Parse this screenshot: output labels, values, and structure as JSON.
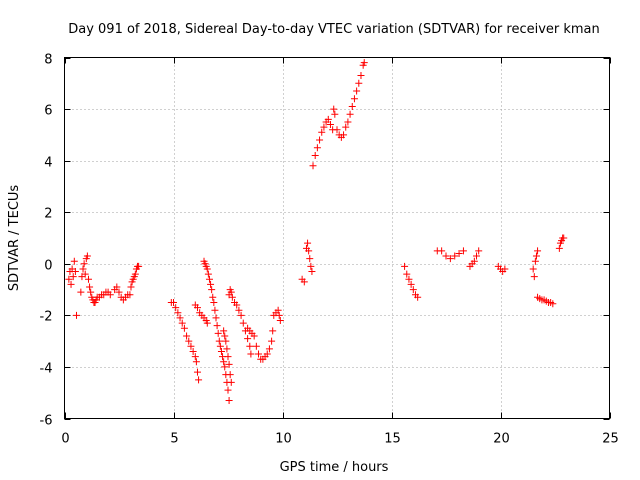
{
  "chart_data": {
    "type": "scatter",
    "title": "Day 091 of 2018, Sidereal Day-to-day VTEC variation (SDTVAR) for receiver kman",
    "xlabel": "GPS time / hours",
    "ylabel": "SDTVAR / TECUs",
    "xlim": [
      0,
      25
    ],
    "ylim": [
      -6,
      8
    ],
    "xticks": [
      0,
      5,
      10,
      15,
      20,
      25
    ],
    "yticks": [
      -6,
      -4,
      -2,
      0,
      2,
      4,
      6,
      8
    ],
    "xtick_labels": [
      "0",
      "5",
      "10",
      "15",
      "20",
      "25"
    ],
    "ytick_labels": [
      "-6",
      "-4",
      "-2",
      "0",
      "2",
      "4",
      "6",
      "8"
    ],
    "grid": true,
    "marker": "+",
    "marker_color": "#ff0000",
    "series": [
      {
        "name": "SDTVAR",
        "points": [
          [
            0.2,
            -0.6
          ],
          [
            0.25,
            -0.3
          ],
          [
            0.3,
            -0.8
          ],
          [
            0.35,
            -0.2
          ],
          [
            0.4,
            -0.5
          ],
          [
            0.45,
            0.1
          ],
          [
            0.5,
            -0.3
          ],
          [
            0.55,
            -2.0
          ],
          [
            0.75,
            -1.1
          ],
          [
            0.8,
            -0.5
          ],
          [
            0.85,
            -0.2
          ],
          [
            0.9,
            0.0
          ],
          [
            0.95,
            -0.4
          ],
          [
            1.0,
            0.2
          ],
          [
            1.05,
            0.3
          ],
          [
            1.1,
            -0.6
          ],
          [
            1.15,
            -0.9
          ],
          [
            1.2,
            -1.1
          ],
          [
            1.25,
            -1.3
          ],
          [
            1.3,
            -1.4
          ],
          [
            1.35,
            -1.5
          ],
          [
            1.4,
            -1.5
          ],
          [
            1.45,
            -1.4
          ],
          [
            1.5,
            -1.3
          ],
          [
            1.6,
            -1.3
          ],
          [
            1.7,
            -1.2
          ],
          [
            1.8,
            -1.2
          ],
          [
            1.9,
            -1.1
          ],
          [
            2.0,
            -1.1
          ],
          [
            2.1,
            -1.2
          ],
          [
            2.3,
            -1.0
          ],
          [
            2.4,
            -0.9
          ],
          [
            2.5,
            -1.1
          ],
          [
            2.6,
            -1.3
          ],
          [
            2.7,
            -1.4
          ],
          [
            2.8,
            -1.3
          ],
          [
            2.9,
            -1.2
          ],
          [
            3.0,
            -1.2
          ],
          [
            3.05,
            -0.9
          ],
          [
            3.1,
            -0.7
          ],
          [
            3.15,
            -0.6
          ],
          [
            3.2,
            -0.5
          ],
          [
            3.25,
            -0.4
          ],
          [
            3.3,
            -0.2
          ],
          [
            3.35,
            -0.1
          ],
          [
            3.4,
            -0.1
          ],
          [
            4.9,
            -1.5
          ],
          [
            5.0,
            -1.5
          ],
          [
            5.1,
            -1.7
          ],
          [
            5.2,
            -1.9
          ],
          [
            5.3,
            -2.1
          ],
          [
            5.4,
            -2.3
          ],
          [
            5.5,
            -2.5
          ],
          [
            5.6,
            -2.8
          ],
          [
            5.7,
            -3.0
          ],
          [
            5.8,
            -3.2
          ],
          [
            5.9,
            -3.4
          ],
          [
            6.0,
            -3.6
          ],
          [
            6.05,
            -3.8
          ],
          [
            6.1,
            -4.2
          ],
          [
            6.15,
            -4.5
          ],
          [
            6.0,
            -1.6
          ],
          [
            6.1,
            -1.7
          ],
          [
            6.2,
            -1.9
          ],
          [
            6.3,
            -2.0
          ],
          [
            6.4,
            -2.1
          ],
          [
            6.5,
            -2.2
          ],
          [
            6.55,
            -2.3
          ],
          [
            6.4,
            0.1
          ],
          [
            6.45,
            0.0
          ],
          [
            6.5,
            -0.1
          ],
          [
            6.55,
            -0.2
          ],
          [
            6.6,
            -0.4
          ],
          [
            6.65,
            -0.6
          ],
          [
            6.7,
            -0.8
          ],
          [
            6.75,
            -1.0
          ],
          [
            6.8,
            -1.3
          ],
          [
            6.85,
            -1.5
          ],
          [
            6.9,
            -1.8
          ],
          [
            6.95,
            -2.1
          ],
          [
            7.0,
            -2.4
          ],
          [
            7.05,
            -2.7
          ],
          [
            7.1,
            -3.0
          ],
          [
            7.15,
            -3.2
          ],
          [
            7.2,
            -3.4
          ],
          [
            7.25,
            -3.6
          ],
          [
            7.3,
            -3.8
          ],
          [
            7.35,
            -4.0
          ],
          [
            7.4,
            -4.3
          ],
          [
            7.45,
            -4.6
          ],
          [
            7.5,
            -4.9
          ],
          [
            7.55,
            -5.3
          ],
          [
            7.3,
            -2.6
          ],
          [
            7.35,
            -2.8
          ],
          [
            7.4,
            -3.0
          ],
          [
            7.45,
            -3.3
          ],
          [
            7.5,
            -3.6
          ],
          [
            7.55,
            -3.9
          ],
          [
            7.6,
            -4.3
          ],
          [
            7.65,
            -4.6
          ],
          [
            7.55,
            -1.2
          ],
          [
            7.6,
            -1.0
          ],
          [
            7.65,
            -1.1
          ],
          [
            7.7,
            -1.3
          ],
          [
            7.8,
            -1.5
          ],
          [
            7.9,
            -1.6
          ],
          [
            8.0,
            -1.8
          ],
          [
            8.1,
            -2.0
          ],
          [
            8.2,
            -2.3
          ],
          [
            8.3,
            -2.6
          ],
          [
            8.4,
            -2.9
          ],
          [
            8.5,
            -3.2
          ],
          [
            8.55,
            -3.5
          ],
          [
            8.4,
            -2.5
          ],
          [
            8.5,
            -2.6
          ],
          [
            8.6,
            -2.7
          ],
          [
            8.7,
            -2.8
          ],
          [
            8.8,
            -3.2
          ],
          [
            8.9,
            -3.5
          ],
          [
            9.0,
            -3.7
          ],
          [
            9.1,
            -3.7
          ],
          [
            9.2,
            -3.6
          ],
          [
            9.3,
            -3.5
          ],
          [
            9.4,
            -3.3
          ],
          [
            9.5,
            -3.0
          ],
          [
            9.55,
            -2.6
          ],
          [
            9.6,
            -2.0
          ],
          [
            9.7,
            -1.9
          ],
          [
            9.8,
            -1.8
          ],
          [
            9.85,
            -2.0
          ],
          [
            9.9,
            -2.2
          ],
          [
            10.9,
            -0.6
          ],
          [
            11.0,
            -0.7
          ],
          [
            11.1,
            0.6
          ],
          [
            11.15,
            0.8
          ],
          [
            11.2,
            0.5
          ],
          [
            11.25,
            0.2
          ],
          [
            11.3,
            -0.1
          ],
          [
            11.35,
            -0.3
          ],
          [
            11.4,
            3.8
          ],
          [
            11.5,
            4.2
          ],
          [
            11.6,
            4.5
          ],
          [
            11.7,
            4.8
          ],
          [
            11.8,
            5.1
          ],
          [
            11.9,
            5.3
          ],
          [
            12.0,
            5.5
          ],
          [
            12.1,
            5.6
          ],
          [
            12.2,
            5.4
          ],
          [
            12.3,
            5.2
          ],
          [
            12.35,
            6.0
          ],
          [
            12.4,
            5.8
          ],
          [
            12.5,
            5.2
          ],
          [
            12.6,
            5.0
          ],
          [
            12.7,
            4.9
          ],
          [
            12.8,
            5.0
          ],
          [
            12.9,
            5.3
          ],
          [
            13.0,
            5.5
          ],
          [
            13.1,
            5.8
          ],
          [
            13.2,
            6.1
          ],
          [
            13.3,
            6.4
          ],
          [
            13.4,
            6.7
          ],
          [
            13.5,
            7.0
          ],
          [
            13.6,
            7.3
          ],
          [
            13.7,
            7.7
          ],
          [
            13.75,
            7.8
          ],
          [
            15.6,
            -0.1
          ],
          [
            15.7,
            -0.4
          ],
          [
            15.8,
            -0.6
          ],
          [
            15.9,
            -0.8
          ],
          [
            16.0,
            -1.0
          ],
          [
            16.1,
            -1.2
          ],
          [
            16.2,
            -1.3
          ],
          [
            17.1,
            0.5
          ],
          [
            17.3,
            0.5
          ],
          [
            17.5,
            0.3
          ],
          [
            17.7,
            0.2
          ],
          [
            17.9,
            0.3
          ],
          [
            18.1,
            0.4
          ],
          [
            18.3,
            0.5
          ],
          [
            18.6,
            -0.1
          ],
          [
            18.7,
            0.0
          ],
          [
            18.8,
            0.1
          ],
          [
            18.9,
            0.3
          ],
          [
            19.0,
            0.5
          ],
          [
            19.9,
            -0.1
          ],
          [
            20.0,
            -0.2
          ],
          [
            20.1,
            -0.3
          ],
          [
            20.2,
            -0.2
          ],
          [
            21.5,
            -0.2
          ],
          [
            21.55,
            -0.5
          ],
          [
            21.6,
            0.1
          ],
          [
            21.65,
            0.3
          ],
          [
            21.7,
            0.5
          ],
          [
            21.7,
            -1.3
          ],
          [
            21.8,
            -1.35
          ],
          [
            21.9,
            -1.4
          ],
          [
            22.0,
            -1.4
          ],
          [
            22.1,
            -1.45
          ],
          [
            22.2,
            -1.5
          ],
          [
            22.3,
            -1.5
          ],
          [
            22.4,
            -1.55
          ],
          [
            22.7,
            0.6
          ],
          [
            22.75,
            0.8
          ],
          [
            22.8,
            0.9
          ],
          [
            22.85,
            1.0
          ],
          [
            22.9,
            1.0
          ]
        ]
      }
    ]
  }
}
